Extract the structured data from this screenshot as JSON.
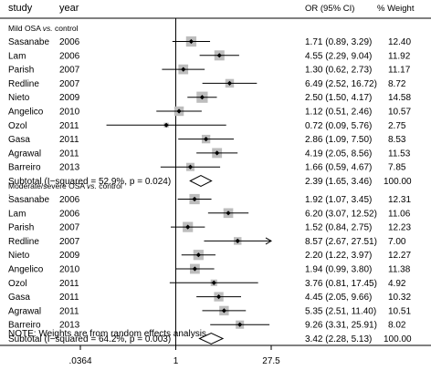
{
  "header": {
    "study": "study",
    "year": "year",
    "or_ci": "OR (95% CI)",
    "weight": "% Weight"
  },
  "chart_data": {
    "type": "forest",
    "scale": "log",
    "xticks": [
      {
        "value": 0.0364,
        "label": ".0364"
      },
      {
        "value": 1,
        "label": "1"
      },
      {
        "value": 27.5,
        "label": "27.5"
      }
    ],
    "xlim": [
      0.0364,
      27.5
    ],
    "groups": [
      {
        "label_main": "Mild OSA ",
        "label_vs": "vs.",
        "label_tail": " control",
        "studies": [
          {
            "study": "Sasanabe",
            "year": "2006",
            "or": 1.71,
            "lo": 0.89,
            "hi": 3.29,
            "ci_text": "1.71 (0.89, 3.29)",
            "weight": 12.4,
            "weight_text": "12.40"
          },
          {
            "study": "Lam",
            "year": "2006",
            "or": 4.55,
            "lo": 2.29,
            "hi": 9.04,
            "ci_text": "4.55 (2.29, 9.04)",
            "weight": 11.92,
            "weight_text": "11.92"
          },
          {
            "study": "Parish",
            "year": "2007",
            "or": 1.3,
            "lo": 0.62,
            "hi": 2.73,
            "ci_text": "1.30 (0.62, 2.73)",
            "weight": 11.17,
            "weight_text": "11.17"
          },
          {
            "study": "Redline",
            "year": "2007",
            "or": 6.49,
            "lo": 2.52,
            "hi": 16.72,
            "ci_text": "6.49 (2.52, 16.72)",
            "weight": 8.72,
            "weight_text": "8.72"
          },
          {
            "study": "Nieto",
            "year": "2009",
            "or": 2.5,
            "lo": 1.5,
            "hi": 4.17,
            "ci_text": "2.50 (1.50, 4.17)",
            "weight": 14.58,
            "weight_text": "14.58"
          },
          {
            "study": "Angelico",
            "year": "2010",
            "or": 1.12,
            "lo": 0.51,
            "hi": 2.46,
            "ci_text": "1.12 (0.51, 2.46)",
            "weight": 10.57,
            "weight_text": "10.57"
          },
          {
            "study": "Ozol",
            "year": "2011",
            "or": 0.72,
            "lo": 0.09,
            "hi": 5.76,
            "ci_text": "0.72 (0.09, 5.76)",
            "weight": 2.75,
            "weight_text": "2.75"
          },
          {
            "study": "Gasa",
            "year": "2011",
            "or": 2.86,
            "lo": 1.09,
            "hi": 7.5,
            "ci_text": "2.86 (1.09, 7.50)",
            "weight": 8.53,
            "weight_text": "8.53"
          },
          {
            "study": "Agrawal",
            "year": "2011",
            "or": 4.19,
            "lo": 2.05,
            "hi": 8.56,
            "ci_text": "4.19 (2.05, 8.56)",
            "weight": 11.53,
            "weight_text": "11.53"
          },
          {
            "study": "Barreiro",
            "year": "2013",
            "or": 1.66,
            "lo": 0.59,
            "hi": 4.67,
            "ci_text": "1.66 (0.59, 4.67)",
            "weight": 7.85,
            "weight_text": "7.85"
          }
        ],
        "subtotal": {
          "label": "Subtotal  (I−squared = 52.9%, p = 0.024)",
          "or": 2.39,
          "lo": 1.65,
          "hi": 3.46,
          "ci_text": "2.39 (1.65, 3.46)",
          "weight_text": "100.00"
        }
      },
      {
        "label_main": "Moderate/severe OSA ",
        "label_vs": "vs.",
        "label_tail": " control",
        "studies": [
          {
            "study": "Sasanabe",
            "year": "2006",
            "or": 1.92,
            "lo": 1.07,
            "hi": 3.45,
            "ci_text": "1.92 (1.07, 3.45)",
            "weight": 12.31,
            "weight_text": "12.31"
          },
          {
            "study": "Lam",
            "year": "2006",
            "or": 6.2,
            "lo": 3.07,
            "hi": 12.52,
            "ci_text": "6.20 (3.07, 12.52)",
            "weight": 11.06,
            "weight_text": "11.06"
          },
          {
            "study": "Parish",
            "year": "2007",
            "or": 1.52,
            "lo": 0.84,
            "hi": 2.75,
            "ci_text": "1.52 (0.84, 2.75)",
            "weight": 12.23,
            "weight_text": "12.23"
          },
          {
            "study": "Redline",
            "year": "2007",
            "or": 8.57,
            "lo": 2.67,
            "hi": 27.51,
            "ci_text": "8.57 (2.67, 27.51)",
            "weight": 7.0,
            "weight_text": "7.00"
          },
          {
            "study": "Nieto",
            "year": "2009",
            "or": 2.2,
            "lo": 1.22,
            "hi": 3.97,
            "ci_text": "2.20 (1.22, 3.97)",
            "weight": 12.27,
            "weight_text": "12.27"
          },
          {
            "study": "Angelico",
            "year": "2010",
            "or": 1.94,
            "lo": 0.99,
            "hi": 3.8,
            "ci_text": "1.94 (0.99, 3.80)",
            "weight": 11.38,
            "weight_text": "11.38"
          },
          {
            "study": "Ozol",
            "year": "2011",
            "or": 3.76,
            "lo": 0.81,
            "hi": 17.45,
            "ci_text": "3.76 (0.81, 17.45)",
            "weight": 4.92,
            "weight_text": "4.92"
          },
          {
            "study": "Gasa",
            "year": "2011",
            "or": 4.45,
            "lo": 2.05,
            "hi": 9.66,
            "ci_text": "4.45 (2.05, 9.66)",
            "weight": 10.32,
            "weight_text": "10.32"
          },
          {
            "study": "Agrawal",
            "year": "2011",
            "or": 5.35,
            "lo": 2.51,
            "hi": 11.4,
            "ci_text": "5.35 (2.51, 11.40)",
            "weight": 10.51,
            "weight_text": "10.51"
          },
          {
            "study": "Barreiro",
            "year": "2013",
            "or": 9.26,
            "lo": 3.31,
            "hi": 25.91,
            "ci_text": "9.26 (3.31, 25.91)",
            "weight": 8.02,
            "weight_text": "8.02"
          }
        ],
        "subtotal": {
          "label": "Subtotal  (I−squared = 64.2%, p = 0.003)",
          "or": 3.42,
          "lo": 2.28,
          "hi": 5.13,
          "ci_text": "3.42 (2.28, 5.13)",
          "weight_text": "100.00"
        }
      }
    ],
    "note": "NOTE: Weights are from random effects analysis",
    "colors": {
      "box": "#bdbdbd",
      "line": "#000000",
      "text": "#000000"
    }
  }
}
